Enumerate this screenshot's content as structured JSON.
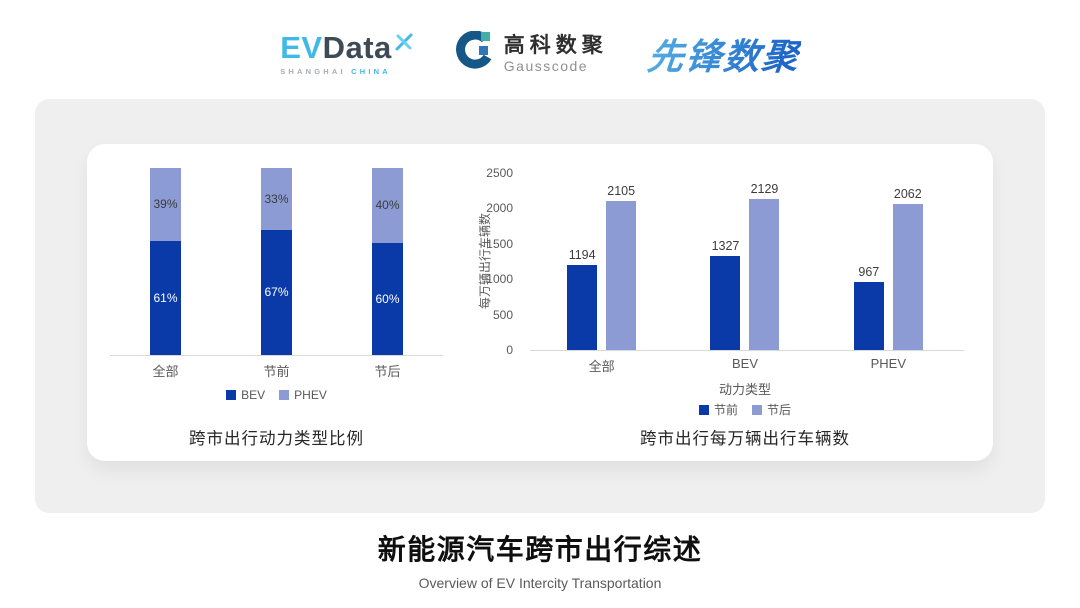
{
  "header": {
    "logos": {
      "evdata": {
        "ev": "EV",
        "data": "Data",
        "sub_left": "SHANGHAI",
        "sub_right": "CHINA"
      },
      "gausscode": {
        "cn": "高科数聚",
        "en": "Gausscode"
      },
      "xianfeng": {
        "text": "先锋数聚"
      }
    }
  },
  "footer": {
    "title": "新能源汽车跨市出行综述",
    "subtitle": "Overview of EV Intercity Transportation"
  },
  "colors": {
    "bar_dark_blue": "#0a3aa8",
    "bar_light_blue": "#8c9bd4",
    "card_bg": "#efefef",
    "axis_line": "#d9d9d9",
    "label_gray": "#595959",
    "logo_cyan": "#3fb9e5",
    "logo_slate": "#3e4b57"
  },
  "chart_data": [
    {
      "type": "bar",
      "subtype": "stacked-100-percent",
      "title": "跨市出行动力类型比例",
      "categories": [
        "全部",
        "节前",
        "节后"
      ],
      "series": [
        {
          "name": "BEV",
          "key": "bev",
          "color": "#0a3aa8",
          "values": [
            61,
            67,
            60
          ],
          "labels": [
            "61%",
            "67%",
            "60%"
          ]
        },
        {
          "name": "PHEV",
          "key": "phev",
          "color": "#8c9bd4",
          "values": [
            39,
            33,
            40
          ],
          "labels": [
            "39%",
            "33%",
            "40%"
          ]
        }
      ],
      "legend": [
        "BEV",
        "PHEV"
      ],
      "legend_position": "bottom",
      "ylim": [
        0,
        100
      ],
      "grid": false
    },
    {
      "type": "bar",
      "subtype": "grouped",
      "title": "跨市出行每万辆出行车辆数",
      "categories": [
        "全部",
        "BEV",
        "PHEV"
      ],
      "xlabel": "动力类型",
      "ylabel": "每万辆出行车辆数",
      "yticks": [
        0,
        500,
        1000,
        1500,
        2000,
        2500
      ],
      "ylim": [
        0,
        2500
      ],
      "series": [
        {
          "name": "节前",
          "key": "pre-holiday",
          "color": "#0a3aa8",
          "values": [
            1194,
            1327,
            967
          ]
        },
        {
          "name": "节后",
          "key": "post-holiday",
          "color": "#8c9bd4",
          "values": [
            2105,
            2129,
            2062
          ]
        }
      ],
      "legend": [
        "节前",
        "节后"
      ],
      "legend_position": "bottom",
      "grid": false
    }
  ]
}
